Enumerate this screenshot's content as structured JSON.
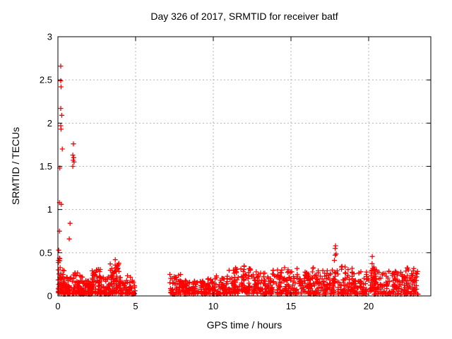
{
  "chart_data": {
    "type": "scatter",
    "title": "Day 326 of 2017, SRMTID for receiver batf",
    "xlabel": "GPS time / hours",
    "ylabel": "SRMTID / TECUs",
    "xlim": [
      0,
      24
    ],
    "ylim": [
      0,
      3
    ],
    "xticks": [
      0,
      5,
      10,
      15,
      20
    ],
    "xtick_labels": [
      "0",
      "5",
      "10",
      "15",
      "20"
    ],
    "yticks": [
      0,
      0.5,
      1,
      1.5,
      2,
      2.5,
      3
    ],
    "ytick_labels": [
      "0",
      "0.5",
      "1",
      "1.5",
      "2",
      "2.5",
      "3"
    ],
    "grid": true,
    "legend": "none",
    "marker": {
      "shape": "plus",
      "color": "#ff0000",
      "size": 7,
      "stroke_width": 1.3
    },
    "axis_color": "#000000",
    "grid_color": "#b3b3b3",
    "background": "#ffffff",
    "data_gap_hours": [
      5.0,
      7.2
    ],
    "outliers": [
      [
        0.18,
        2.66
      ],
      [
        0.18,
        2.49
      ],
      [
        0.2,
        2.42
      ],
      [
        0.18,
        2.17
      ],
      [
        0.25,
        2.09
      ],
      [
        0.18,
        1.97
      ],
      [
        0.2,
        1.93
      ],
      [
        0.28,
        1.7
      ],
      [
        1.0,
        1.76
      ],
      [
        0.96,
        1.63
      ],
      [
        1.02,
        1.6
      ],
      [
        0.98,
        1.57
      ],
      [
        1.04,
        1.55
      ],
      [
        0.96,
        1.5
      ],
      [
        0.12,
        1.48
      ],
      [
        0.1,
        1.08
      ],
      [
        0.22,
        1.06
      ],
      [
        0.78,
        0.84
      ],
      [
        0.1,
        0.75
      ],
      [
        0.73,
        0.66
      ],
      [
        0.05,
        0.53
      ],
      [
        2.48,
        0.3
      ],
      [
        17.85,
        0.55
      ],
      [
        17.87,
        0.58
      ]
    ],
    "noise_band": {
      "seed": 20170326,
      "y_skew": 1.8,
      "segments": [
        [
          0.02,
          0.15,
          22,
          0.03,
          0.45
        ],
        [
          0.1,
          0.4,
          30,
          0.03,
          0.3
        ],
        [
          0.35,
          1.0,
          55,
          0.02,
          0.22
        ],
        [
          1.0,
          1.6,
          60,
          0.02,
          0.28
        ],
        [
          1.6,
          2.2,
          55,
          0.02,
          0.18
        ],
        [
          2.2,
          2.75,
          50,
          0.03,
          0.33
        ],
        [
          2.7,
          3.35,
          50,
          0.02,
          0.22
        ],
        [
          3.35,
          3.95,
          55,
          0.03,
          0.38
        ],
        [
          3.68,
          3.82,
          12,
          0.18,
          0.5
        ],
        [
          3.95,
          5.0,
          70,
          0.02,
          0.24
        ],
        [
          7.2,
          8.1,
          60,
          0.02,
          0.25
        ],
        [
          8.1,
          9.1,
          65,
          0.02,
          0.18
        ],
        [
          9.1,
          10.1,
          65,
          0.02,
          0.2
        ],
        [
          10.1,
          10.9,
          55,
          0.02,
          0.24
        ],
        [
          10.9,
          11.5,
          45,
          0.03,
          0.33
        ],
        [
          11.5,
          12.0,
          40,
          0.03,
          0.35
        ],
        [
          12.0,
          12.7,
          50,
          0.03,
          0.33
        ],
        [
          12.7,
          13.5,
          55,
          0.02,
          0.28
        ],
        [
          13.5,
          14.4,
          60,
          0.02,
          0.3
        ],
        [
          14.4,
          15.4,
          65,
          0.02,
          0.33
        ],
        [
          15.4,
          16.4,
          65,
          0.02,
          0.28
        ],
        [
          16.4,
          17.1,
          50,
          0.02,
          0.35
        ],
        [
          17.1,
          17.8,
          50,
          0.02,
          0.3
        ],
        [
          17.78,
          17.95,
          13,
          0.15,
          0.57
        ],
        [
          17.95,
          18.95,
          65,
          0.02,
          0.35
        ],
        [
          18.95,
          20.0,
          70,
          0.02,
          0.28
        ],
        [
          20.05,
          20.35,
          28,
          0.05,
          0.47
        ],
        [
          20.35,
          21.35,
          65,
          0.02,
          0.31
        ],
        [
          21.35,
          22.35,
          65,
          0.02,
          0.3
        ],
        [
          22.35,
          23.2,
          60,
          0.02,
          0.33
        ]
      ]
    }
  }
}
